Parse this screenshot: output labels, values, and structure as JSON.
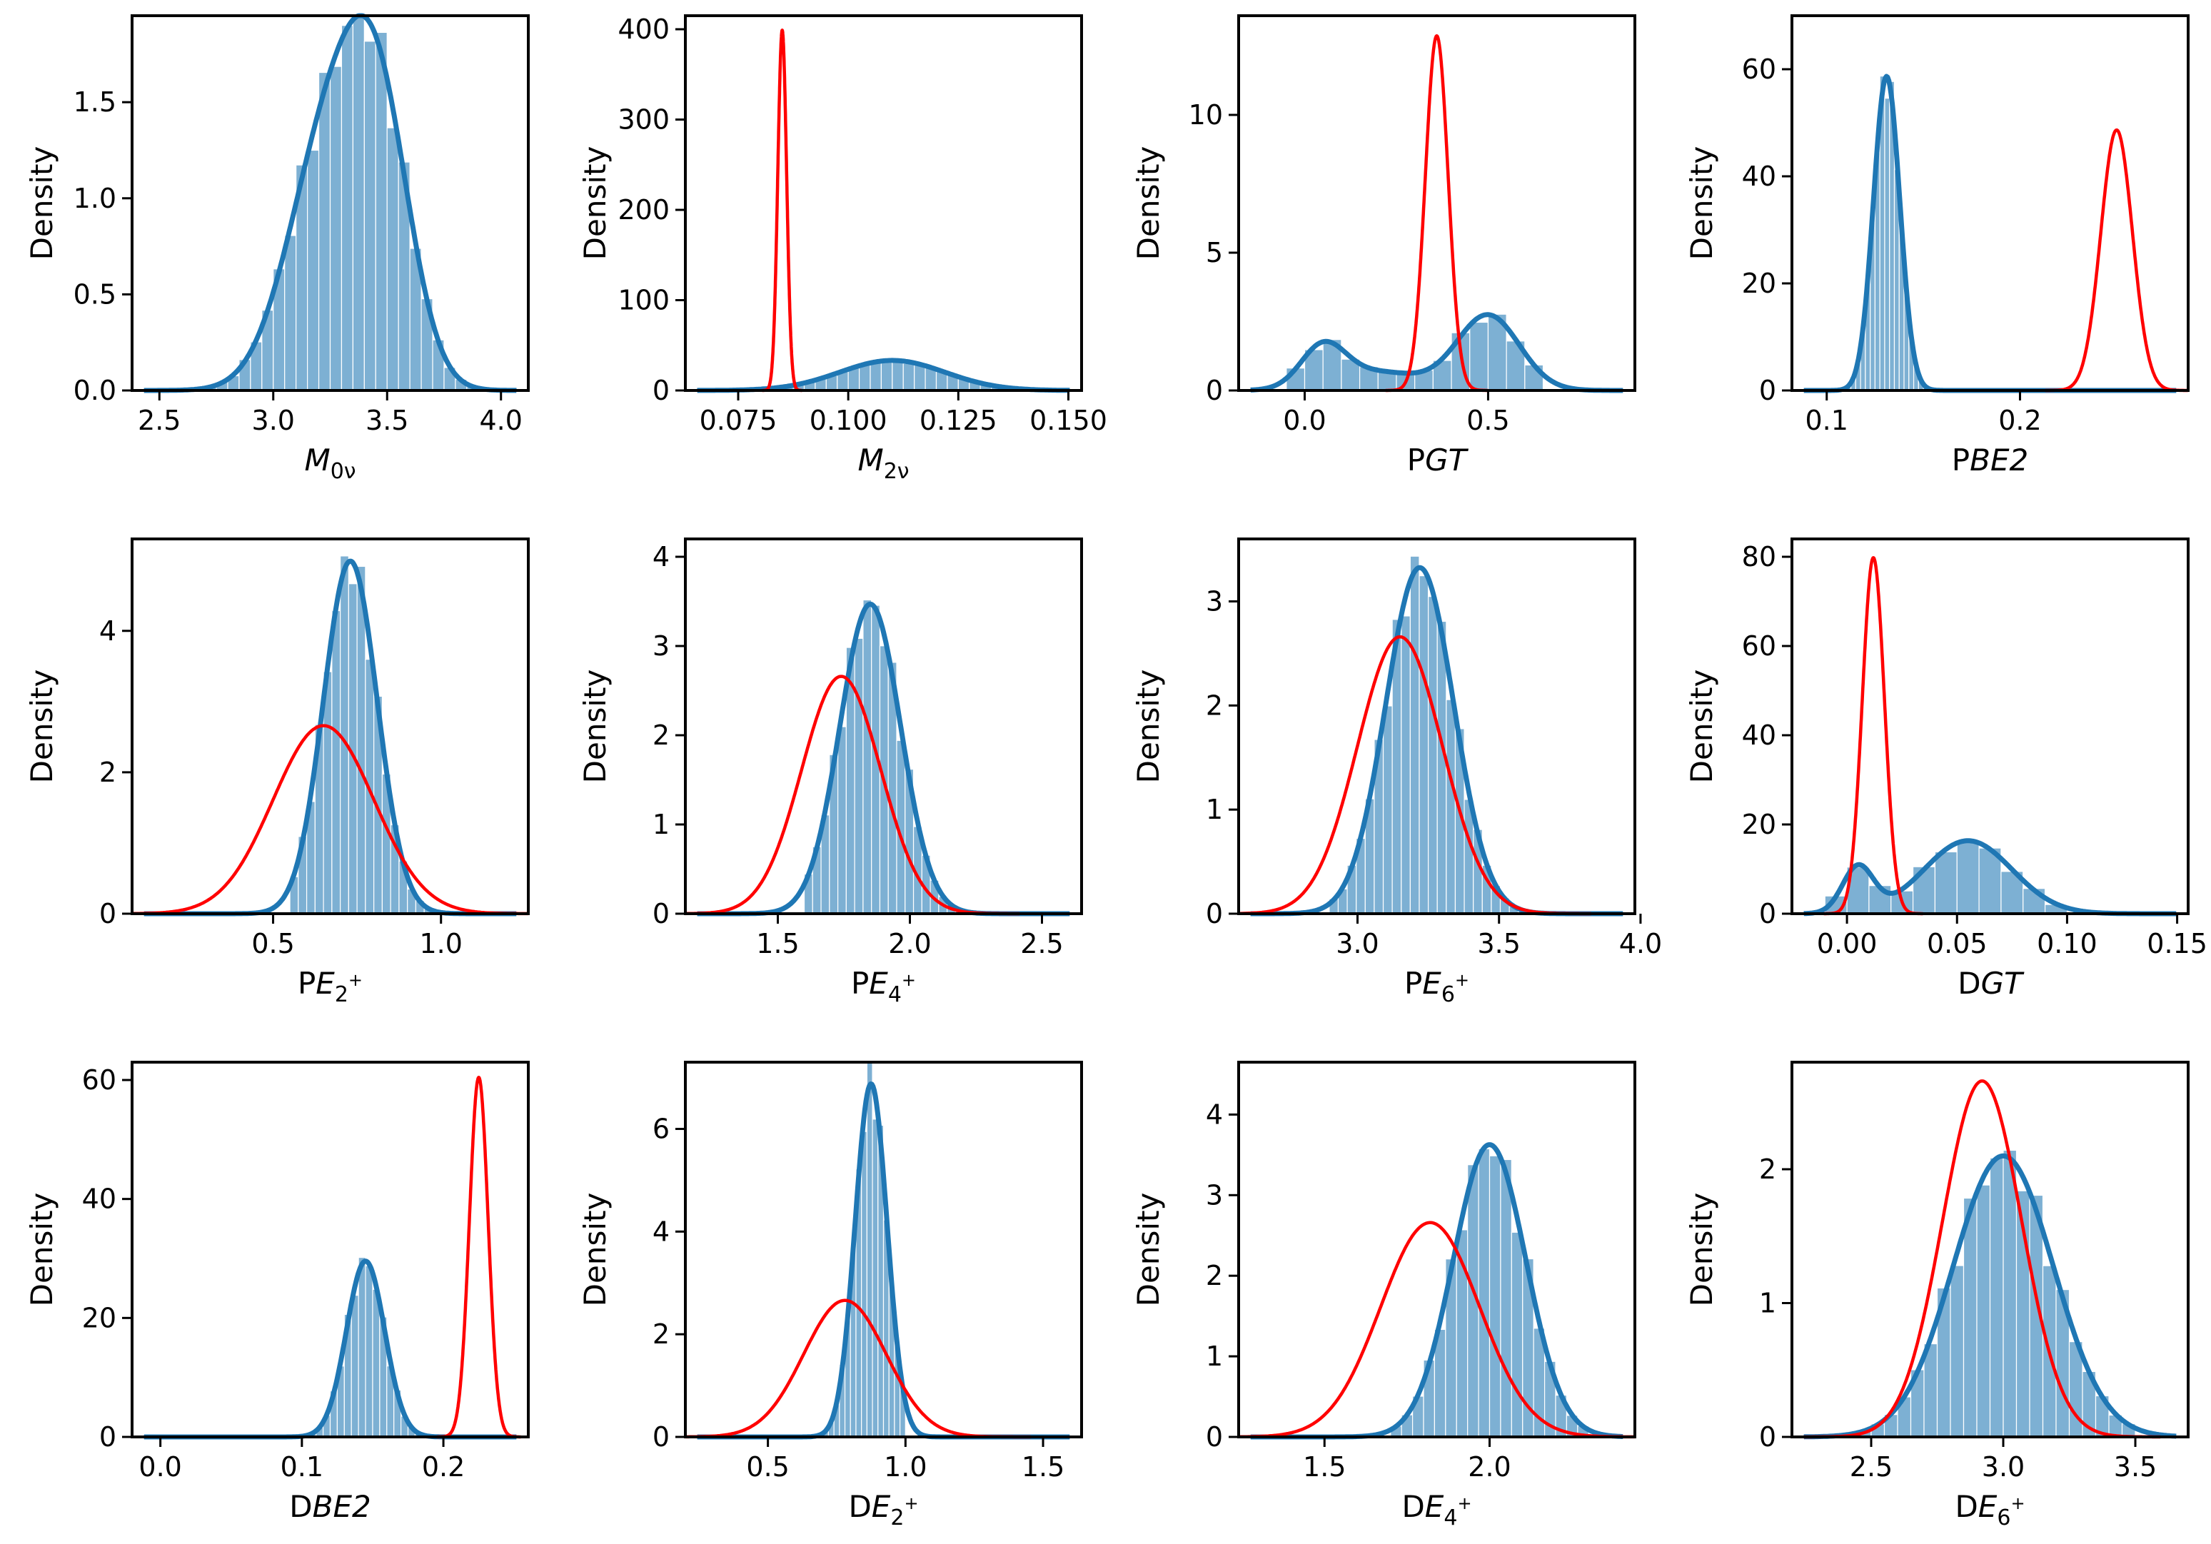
{
  "colors": {
    "hist": "#1f77b4",
    "kde": "#1f77b4",
    "prior": "#ff0000",
    "frame": "#000000"
  },
  "figure": {
    "ylabel": "Density"
  },
  "chart_data": [
    {
      "type": "histogram_kde",
      "xlabel": "M0ν",
      "xlabel_main": "M",
      "xlabel_sub": "0ν",
      "xlabel_sup": "",
      "xlabel_prefix": "",
      "ylabel": "Density",
      "xlim": [
        2.38,
        4.12
      ],
      "ylim": [
        0,
        1.95
      ],
      "xticks": [
        2.5,
        3.0,
        3.5,
        4.0
      ],
      "xtick_labels": [
        "2.5",
        "3.0",
        "3.5",
        "4.0"
      ],
      "yticks": [
        0,
        0.5,
        1.0,
        1.5
      ],
      "ytick_labels": [
        "0.0",
        "0.5",
        "1.0",
        "1.5"
      ],
      "hist_range": [
        2.6,
        3.9
      ],
      "hist_bins": 26,
      "posterior": [
        {
          "mu": 3.25,
          "sigma": 0.18,
          "w": 0.6
        },
        {
          "mu": 3.47,
          "sigma": 0.14,
          "w": 0.4
        }
      ],
      "prior": null
    },
    {
      "type": "histogram_kde",
      "xlabel": "M2ν",
      "xlabel_main": "M",
      "xlabel_sub": "2ν",
      "xlabel_sup": "",
      "xlabel_prefix": "",
      "ylabel": "Density",
      "xlim": [
        0.063,
        0.153
      ],
      "ylim": [
        0,
        415
      ],
      "xticks": [
        0.075,
        0.1,
        0.125,
        0.15
      ],
      "xtick_labels": [
        "0.075",
        "0.100",
        "0.125",
        "0.150"
      ],
      "yticks": [
        0,
        100,
        200,
        300,
        400
      ],
      "ytick_labels": [
        "0",
        "100",
        "200",
        "300",
        "400"
      ],
      "hist_range": [
        0.075,
        0.145
      ],
      "hist_bins": 28,
      "posterior": [
        {
          "mu": 0.11,
          "sigma": 0.012,
          "w": 1.0
        }
      ],
      "prior": {
        "mu": 0.085,
        "sigma": 0.001
      }
    },
    {
      "type": "histogram_kde",
      "xlabel": "PGT",
      "xlabel_main": "GT",
      "xlabel_sub": "",
      "xlabel_sup": "",
      "xlabel_prefix": "P",
      "ylabel": "Density",
      "xlim": [
        -0.18,
        0.9
      ],
      "ylim": [
        0,
        13.6
      ],
      "xticks": [
        0.0,
        0.5
      ],
      "xtick_labels": [
        "0.0",
        "0.5"
      ],
      "yticks": [
        0,
        5,
        10
      ],
      "ytick_labels": [
        "0",
        "5",
        "10"
      ],
      "hist_range": [
        -0.05,
        0.65
      ],
      "hist_bins": 14,
      "posterior": [
        {
          "mu": 0.05,
          "sigma": 0.06,
          "w": 0.22
        },
        {
          "mu": 0.2,
          "sigma": 0.12,
          "w": 0.2
        },
        {
          "mu": 0.5,
          "sigma": 0.085,
          "w": 0.58
        }
      ],
      "prior": {
        "mu": 0.36,
        "sigma": 0.031
      }
    },
    {
      "type": "histogram_kde",
      "xlabel": "PBE2",
      "xlabel_main": "BE2",
      "xlabel_sub": "",
      "xlabel_sup": "",
      "xlabel_prefix": "P",
      "ylabel": "Density",
      "xlim": [
        0.082,
        0.287
      ],
      "ylim": [
        0,
        70
      ],
      "xticks": [
        0.1,
        0.2
      ],
      "xtick_labels": [
        "0.1",
        "0.2"
      ],
      "yticks": [
        0,
        20,
        40,
        60
      ],
      "ytick_labels": [
        "0",
        "20",
        "40",
        "60"
      ],
      "hist_range": [
        0.1,
        0.16
      ],
      "hist_bins": 24,
      "posterior": [
        {
          "mu": 0.131,
          "sigma": 0.0068,
          "w": 1.0
        }
      ],
      "prior": {
        "mu": 0.25,
        "sigma": 0.0082
      }
    },
    {
      "type": "histogram_kde",
      "xlabel": "PE2+",
      "xlabel_main": "E",
      "xlabel_sub": "2",
      "xlabel_sup": "+",
      "xlabel_prefix": "P",
      "ylabel": "Density",
      "xlim": [
        0.08,
        1.26
      ],
      "ylim": [
        0,
        5.3
      ],
      "xticks": [
        0.5,
        1.0
      ],
      "xtick_labels": [
        "0.5",
        "1.0"
      ],
      "yticks": [
        0,
        2,
        4
      ],
      "ytick_labels": [
        "0",
        "2",
        "4"
      ],
      "hist_range": [
        0.55,
        1.0
      ],
      "hist_bins": 18,
      "posterior": [
        {
          "mu": 0.73,
          "sigma": 0.08,
          "w": 1.0
        }
      ],
      "prior": {
        "mu": 0.65,
        "sigma": 0.15
      }
    },
    {
      "type": "histogram_kde",
      "xlabel": "PE4+",
      "xlabel_main": "E",
      "xlabel_sub": "4",
      "xlabel_sup": "+",
      "xlabel_prefix": "P",
      "ylabel": "Density",
      "xlim": [
        1.15,
        2.65
      ],
      "ylim": [
        0,
        4.2
      ],
      "xticks": [
        1.5,
        2.0,
        2.5
      ],
      "xtick_labels": [
        "1.5",
        "2.0",
        "2.5"
      ],
      "yticks": [
        0,
        1,
        2,
        3,
        4
      ],
      "ytick_labels": [
        "0",
        "1",
        "2",
        "3",
        "4"
      ],
      "hist_range": [
        1.6,
        2.3
      ],
      "hist_bins": 22,
      "posterior": [
        {
          "mu": 1.85,
          "sigma": 0.115,
          "w": 1.0
        }
      ],
      "prior": {
        "mu": 1.74,
        "sigma": 0.15
      }
    },
    {
      "type": "histogram_kde",
      "xlabel": "PE6+",
      "xlabel_main": "E",
      "xlabel_sub": "6",
      "xlabel_sup": "+",
      "xlabel_prefix": "P",
      "ylabel": "Density",
      "xlim": [
        2.58,
        3.98
      ],
      "ylim": [
        0,
        3.6
      ],
      "xticks": [
        3.0,
        3.5,
        4.0
      ],
      "xtick_labels": [
        "3.0",
        "3.5",
        "4.0"
      ],
      "yticks": [
        0,
        1,
        2,
        3
      ],
      "ytick_labels": [
        "0",
        "1",
        "2",
        "3"
      ],
      "hist_range": [
        2.9,
        3.6
      ],
      "hist_bins": 22,
      "posterior": [
        {
          "mu": 3.22,
          "sigma": 0.12,
          "w": 1.0
        }
      ],
      "prior": {
        "mu": 3.15,
        "sigma": 0.15
      }
    },
    {
      "type": "histogram_kde",
      "xlabel": "DGT",
      "xlabel_main": "GT",
      "xlabel_sub": "",
      "xlabel_sup": "",
      "xlabel_prefix": "D",
      "ylabel": "Density",
      "xlim": [
        -0.025,
        0.155
      ],
      "ylim": [
        0,
        84
      ],
      "xticks": [
        0.0,
        0.05,
        0.1,
        0.15
      ],
      "xtick_labels": [
        "0.00",
        "0.05",
        "0.10",
        "0.15"
      ],
      "yticks": [
        0,
        20,
        40,
        60,
        80
      ],
      "ytick_labels": [
        "0",
        "20",
        "40",
        "60",
        "80"
      ],
      "hist_range": [
        -0.01,
        0.1
      ],
      "hist_bins": 11,
      "posterior": [
        {
          "mu": 0.005,
          "sigma": 0.007,
          "w": 0.18
        },
        {
          "mu": 0.055,
          "sigma": 0.02,
          "w": 0.82
        }
      ],
      "prior": {
        "mu": 0.012,
        "sigma": 0.005
      }
    },
    {
      "type": "histogram_kde",
      "xlabel": "DBE2",
      "xlabel_main": "BE2",
      "xlabel_sub": "",
      "xlabel_sup": "",
      "xlabel_prefix": "D",
      "ylabel": "Density",
      "xlim": [
        -0.02,
        0.26
      ],
      "ylim": [
        0,
        63
      ],
      "xticks": [
        0.0,
        0.1,
        0.2
      ],
      "xtick_labels": [
        "0.0",
        "0.1",
        "0.2"
      ],
      "yticks": [
        0,
        20,
        40,
        60
      ],
      "ytick_labels": [
        "0",
        "20",
        "40",
        "60"
      ],
      "hist_range": [
        0.1,
        0.19
      ],
      "hist_bins": 18,
      "posterior": [
        {
          "mu": 0.145,
          "sigma": 0.0135,
          "w": 1.0
        }
      ],
      "prior": {
        "mu": 0.225,
        "sigma": 0.0066
      }
    },
    {
      "type": "histogram_kde",
      "xlabel": "DE2+",
      "xlabel_main": "E",
      "xlabel_sub": "2",
      "xlabel_sup": "+",
      "xlabel_prefix": "D",
      "ylabel": "Density",
      "xlim": [
        0.2,
        1.64
      ],
      "ylim": [
        0,
        7.3
      ],
      "xticks": [
        0.5,
        1.0,
        1.5
      ],
      "xtick_labels": [
        "0.5",
        "1.0",
        "1.5"
      ],
      "yticks": [
        0,
        2,
        4,
        6
      ],
      "ytick_labels": [
        "0",
        "2",
        "4",
        "6"
      ],
      "hist_range": [
        0.7,
        1.0
      ],
      "hist_bins": 15,
      "posterior": [
        {
          "mu": 0.875,
          "sigma": 0.058,
          "w": 1.0
        }
      ],
      "prior": {
        "mu": 0.78,
        "sigma": 0.15
      }
    },
    {
      "type": "histogram_kde",
      "xlabel": "DE4+",
      "xlabel_main": "E",
      "xlabel_sub": "4",
      "xlabel_sup": "+",
      "xlabel_prefix": "D",
      "ylabel": "Density",
      "xlim": [
        1.24,
        2.44
      ],
      "ylim": [
        0,
        4.65
      ],
      "xticks": [
        1.5,
        2.0
      ],
      "xtick_labels": [
        "1.5",
        "2.0"
      ],
      "yticks": [
        0,
        1,
        2,
        3,
        4
      ],
      "ytick_labels": [
        "0",
        "1",
        "2",
        "3",
        "4"
      ],
      "hist_range": [
        1.7,
        2.3
      ],
      "hist_bins": 18,
      "posterior": [
        {
          "mu": 2.0,
          "sigma": 0.11,
          "w": 1.0
        }
      ],
      "prior": {
        "mu": 1.82,
        "sigma": 0.15
      }
    },
    {
      "type": "histogram_kde",
      "xlabel": "DE6+",
      "xlabel_main": "E",
      "xlabel_sub": "6",
      "xlabel_sup": "+",
      "xlabel_prefix": "D",
      "ylabel": "Density",
      "xlim": [
        2.2,
        3.7
      ],
      "ylim": [
        0,
        2.8
      ],
      "xticks": [
        2.5,
        3.0,
        3.5
      ],
      "xtick_labels": [
        "2.5",
        "3.0",
        "3.5"
      ],
      "yticks": [
        0,
        1,
        2
      ],
      "ytick_labels": [
        "0",
        "1",
        "2"
      ],
      "hist_range": [
        2.4,
        3.5
      ],
      "hist_bins": 22,
      "posterior": [
        {
          "mu": 3.0,
          "sigma": 0.19,
          "w": 1.0
        }
      ],
      "prior": {
        "mu": 2.92,
        "sigma": 0.15
      }
    }
  ]
}
